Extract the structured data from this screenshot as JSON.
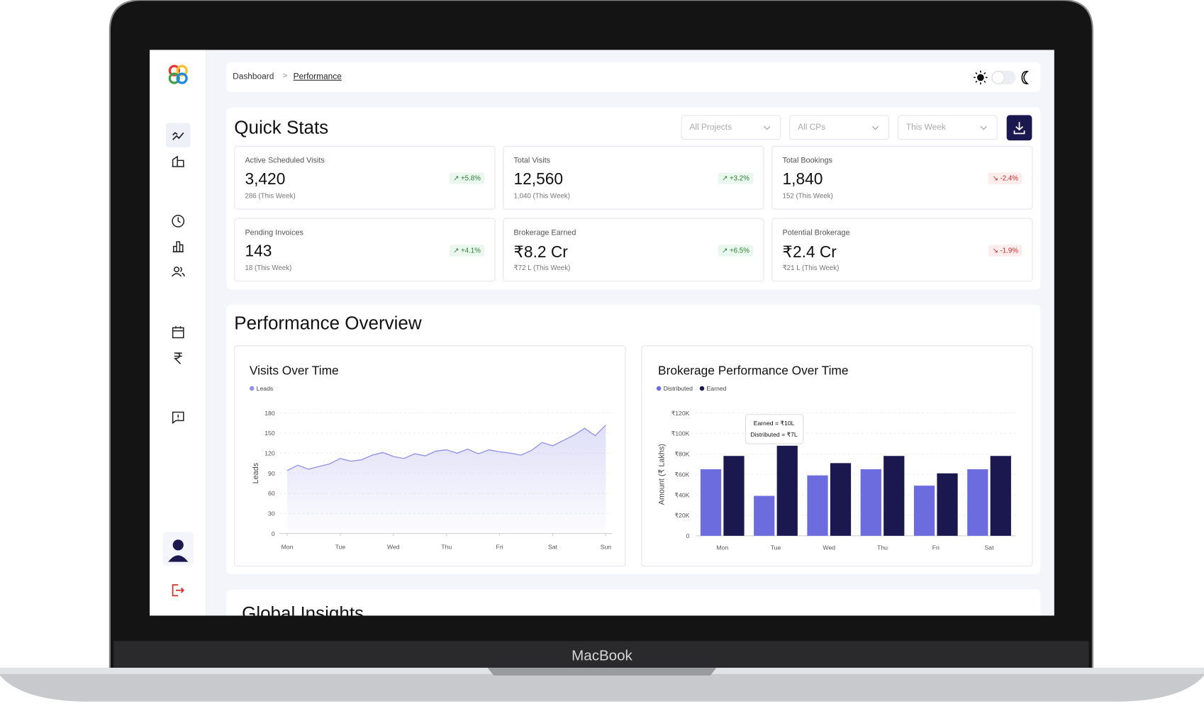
{
  "laptop_label": "MacBook",
  "breadcrumb": [
    "Dashboard",
    "Performance"
  ],
  "quick_stats": {
    "title": "Quick Stats",
    "filters": [
      "All Projects",
      "All CPs",
      "This Week"
    ],
    "cards": [
      {
        "label": "Active Scheduled Visits",
        "value": "3,420",
        "change": "+5.8%",
        "sub": "286 (This Week)",
        "trend": "up"
      },
      {
        "label": "Total Visits",
        "value": "12,560",
        "change": "+3.2%",
        "sub": "1,040 (This Week)",
        "trend": "up"
      },
      {
        "label": "Total Bookings",
        "value": "1,840",
        "change": "-2.4%",
        "sub": "152 (This Week)",
        "trend": "down"
      },
      {
        "label": "Pending Invoices",
        "value": "143",
        "change": "+4.1%",
        "sub": "18 (This Week)",
        "trend": "up"
      },
      {
        "label": "Brokerage Earned",
        "value": "₹8.2 Cr",
        "change": "+6.5%",
        "sub": "₹72 L (This Week)",
        "trend": "up"
      },
      {
        "label": "Potential Brokerage",
        "value": "₹2.4 Cr",
        "change": "-1.9%",
        "sub": "₹21 L (This Week)",
        "trend": "down"
      }
    ]
  },
  "performance": {
    "title": "Performance Overview",
    "visits_chart": {
      "type": "line",
      "title": "Visits Over Time",
      "y_label": "Leads",
      "x": [
        0,
        0.2,
        0.4,
        0.6,
        0.8,
        1,
        1.2,
        1.4,
        1.6,
        1.8,
        2,
        2.2,
        2.4,
        2.6,
        2.8,
        3,
        3.2,
        3.4,
        3.6,
        3.8,
        4,
        4.2,
        4.4,
        4.6,
        4.8,
        5,
        5.2,
        5.4,
        5.6,
        5.8,
        6
      ],
      "series": [
        {
          "name": "Leads",
          "color": "#8f8fe6",
          "values": [
            94,
            102,
            96,
            100,
            104,
            112,
            108,
            110,
            117,
            121,
            115,
            112,
            119,
            116,
            123,
            125,
            120,
            126,
            119,
            125,
            122,
            120,
            117,
            124,
            136,
            131,
            139,
            147,
            157,
            146,
            162
          ]
        }
      ],
      "xlim": [
        0,
        6
      ],
      "xticks": [
        {
          "value": 0,
          "label": "Mon"
        },
        {
          "value": 1,
          "label": "Tue"
        },
        {
          "value": 2,
          "label": "Wed"
        },
        {
          "value": 3,
          "label": "Thu"
        },
        {
          "value": 4,
          "label": "Fri"
        },
        {
          "value": 5,
          "label": "Sat"
        },
        {
          "value": 6,
          "label": "Sun"
        }
      ],
      "ylim": [
        0,
        180
      ],
      "yticks": [
        0,
        30,
        60,
        90,
        120,
        150,
        180
      ],
      "grid": true
    },
    "brokerage_chart": {
      "type": "bar",
      "title": "Brokerage Performance Over Time",
      "y_label": "Amount (₹ Lakhs)",
      "categories": [
        "Mon",
        "Tue",
        "Wed",
        "Thu",
        "Fri",
        "Sat"
      ],
      "series": [
        {
          "name": "Distributed",
          "color": "#6c6cdf",
          "values": [
            65000,
            39000,
            59000,
            65000,
            49000,
            65000
          ]
        },
        {
          "name": "Earned",
          "color": "#1b1850",
          "values": [
            78000,
            88000,
            71000,
            78000,
            61000,
            78000
          ]
        }
      ],
      "ylim": [
        0,
        120000
      ],
      "yticks": [
        0,
        {
          "value": 20000,
          "label": "₹20K"
        },
        {
          "value": 40000,
          "label": "₹40K"
        },
        {
          "value": 60000,
          "label": "₹60K"
        },
        {
          "value": 80000,
          "label": "₹80K"
        },
        {
          "value": 100000,
          "label": "₹100K"
        },
        {
          "value": 120000,
          "label": "₹120K"
        }
      ],
      "grid": true,
      "tooltip": [
        "Earned = ₹10L",
        "Distributed = ₹7L"
      ]
    }
  },
  "global_insights": {
    "title": "Global Insights"
  }
}
